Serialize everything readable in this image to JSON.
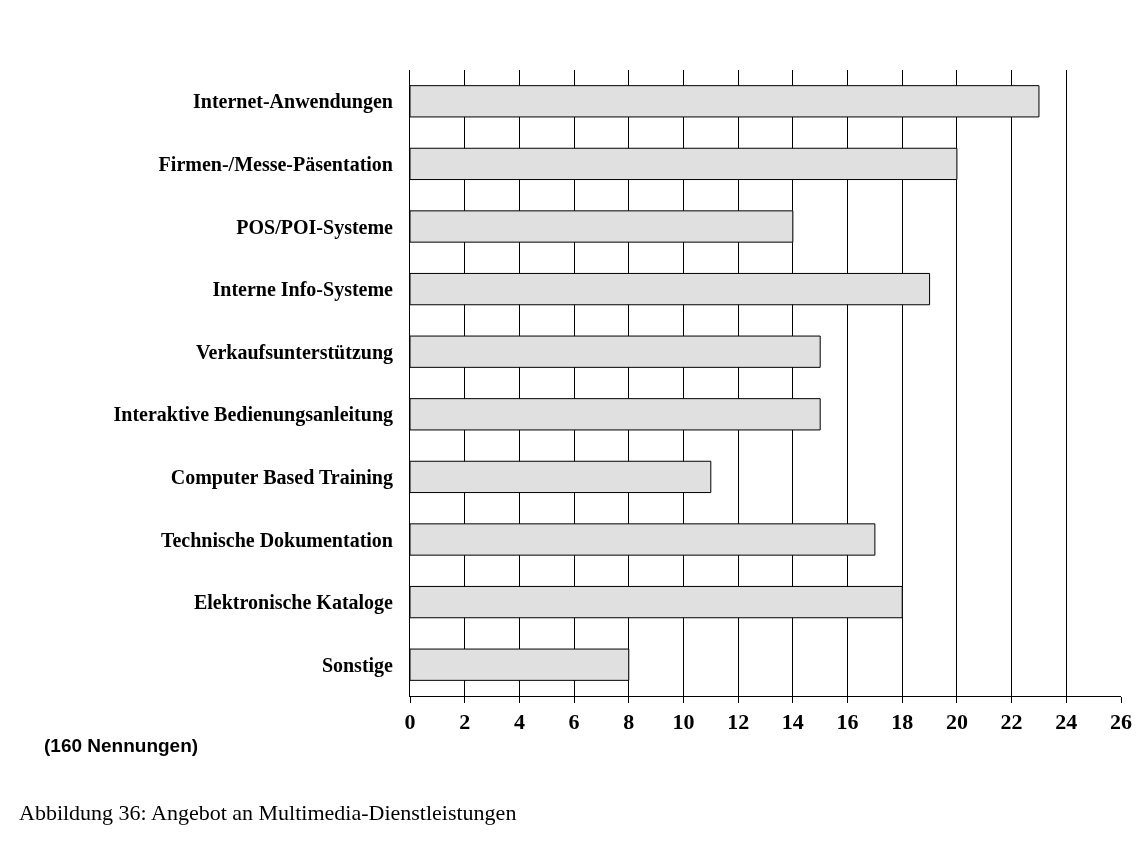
{
  "chart_data": {
    "type": "bar",
    "orientation": "horizontal",
    "categories": [
      "Internet-Anwendungen",
      "Firmen-/Messe-Päsentation",
      "POS/POI-Systeme",
      "Interne Info-Systeme",
      "Verkaufsunterstützung",
      "Interaktive Bedienungsanleitung",
      "Computer Based Training",
      "Technische Dokumentation",
      "Elektronische Kataloge",
      "Sonstige"
    ],
    "values": [
      23,
      20,
      14,
      19,
      15,
      15,
      11,
      17,
      18,
      8
    ],
    "color": "#e0e0e0",
    "xlim": [
      0,
      26
    ],
    "xticks": [
      0,
      2,
      4,
      6,
      8,
      10,
      12,
      14,
      16,
      18,
      20,
      22,
      24,
      26
    ],
    "grid": "x",
    "annotations": [
      "(160 Nennungen)",
      "Abbildung 36: Angebot an Multimedia-Dienstleistungen"
    ]
  }
}
